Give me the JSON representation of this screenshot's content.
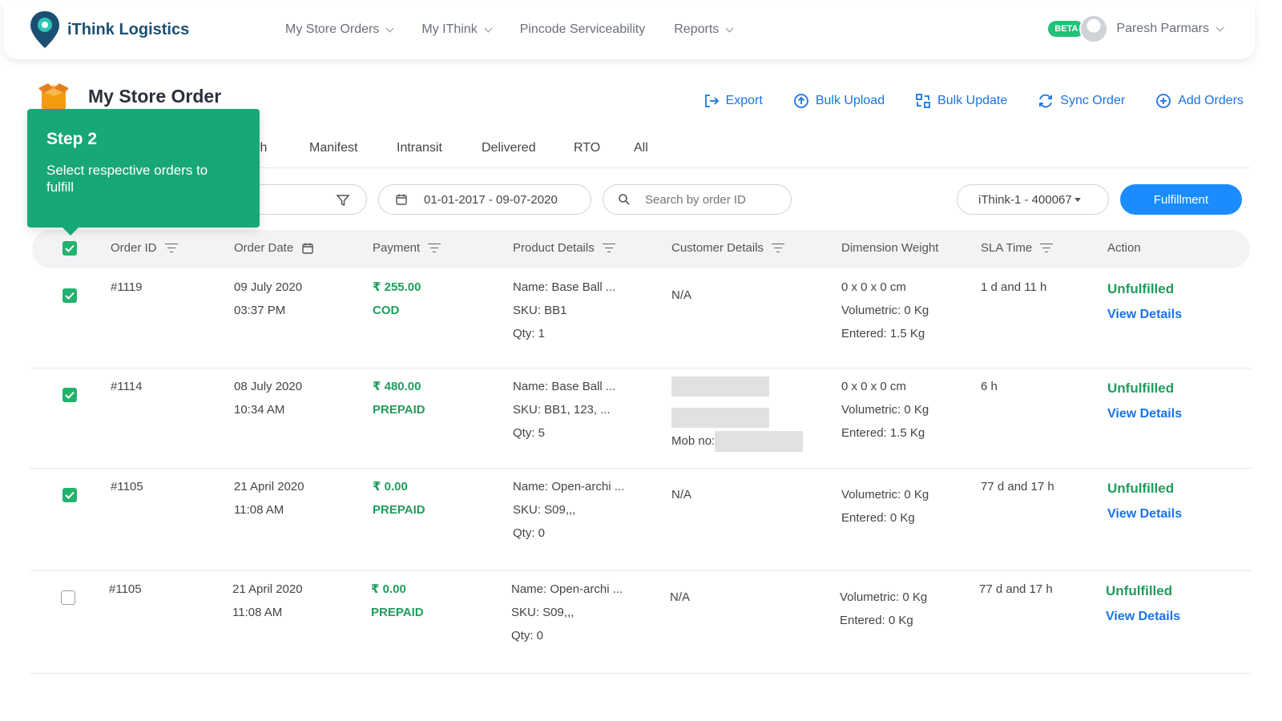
{
  "brand": {
    "name": "iThink Logistics"
  },
  "nav": {
    "items": [
      {
        "label": "My Store Orders"
      },
      {
        "label": "My IThink"
      },
      {
        "label": "Pincode Serviceability"
      },
      {
        "label": "Reports"
      }
    ],
    "beta": "BETA",
    "user": "Paresh Parmars"
  },
  "page": {
    "title": "My Store Order",
    "actions": [
      "Export",
      "Bulk Upload",
      "Bulk Update",
      "Sync Order",
      "Add Orders"
    ]
  },
  "tabs": [
    "tch",
    "Manifest",
    "Intransit",
    "Delivered",
    "RTO",
    "All"
  ],
  "filters": {
    "date_range": "01-01-2017 - 09-07-2020",
    "search_placeholder": "Search by order ID",
    "warehouse": "iThink-1 - 400067",
    "fulfillment_button": "Fulfillment"
  },
  "table": {
    "headers": [
      "Order ID",
      "Order Date",
      "Payment",
      "Product Details",
      "Customer Details",
      "Dimension Weight",
      "SLA Time",
      "Action"
    ],
    "rows": [
      {
        "checked": true,
        "id": "#1119",
        "date": "09 July 2020",
        "time": "03:37 PM",
        "amount": "₹ 255.00",
        "mode": "COD",
        "p1": "Name: Base Ball ...",
        "p2": "SKU: BB1",
        "p3": "Qty: 1",
        "customer": "N/A",
        "d1": "0 x 0 x 0 cm",
        "d2": "Volumetric: 0 Kg",
        "d3": "Entered: 1.5 Kg",
        "sla": "1 d and 11 h",
        "status": "Unfulfilled",
        "view": "View Details"
      },
      {
        "checked": true,
        "id": "#1114",
        "date": "08 July 2020",
        "time": "10:34 AM",
        "amount": "₹ 480.00",
        "mode": "PREPAID",
        "p1": "Name: Base Ball ...",
        "p2": "SKU: BB1, 123, ...",
        "p3": "Qty: 5",
        "customer": "",
        "mob": "Mob no:",
        "d1": "0 x 0 x 0 cm",
        "d2": "Volumetric: 0 Kg",
        "d3": "Entered: 1.5 Kg",
        "sla": "6 h",
        "status": "Unfulfilled",
        "view": "View Details"
      },
      {
        "checked": true,
        "id": "#1105",
        "date": "21 April 2020",
        "time": "11:08 AM",
        "amount": "₹ 0.00",
        "mode": "PREPAID",
        "p1": "Name: Open-archi ...",
        "p2": "SKU: S09,,,",
        "p3": "Qty: 0",
        "customer": "N/A",
        "d1": "",
        "d2": "Volumetric: 0 Kg",
        "d3": "Entered: 0 Kg",
        "sla": "77 d and 17 h",
        "status": "Unfulfilled",
        "view": "View Details"
      },
      {
        "checked": false,
        "id": "#1105",
        "date": "21 April 2020",
        "time": "11:08 AM",
        "amount": "₹ 0.00",
        "mode": "PREPAID",
        "p1": "Name: Open-archi ...",
        "p2": "SKU: S09,,,",
        "p3": "Qty: 0",
        "customer": "N/A",
        "d1": "",
        "d2": "Volumetric: 0 Kg",
        "d3": "Entered: 0 Kg",
        "sla": "77 d and 17 h",
        "status": "Unfulfilled",
        "view": "View Details"
      }
    ]
  },
  "tooltip": {
    "title": "Step 2",
    "body": "Select respective orders to fulfill"
  },
  "colors": {
    "accent": "#1a8cff",
    "success": "#1f9d5c",
    "tooltip": "#18a877"
  }
}
